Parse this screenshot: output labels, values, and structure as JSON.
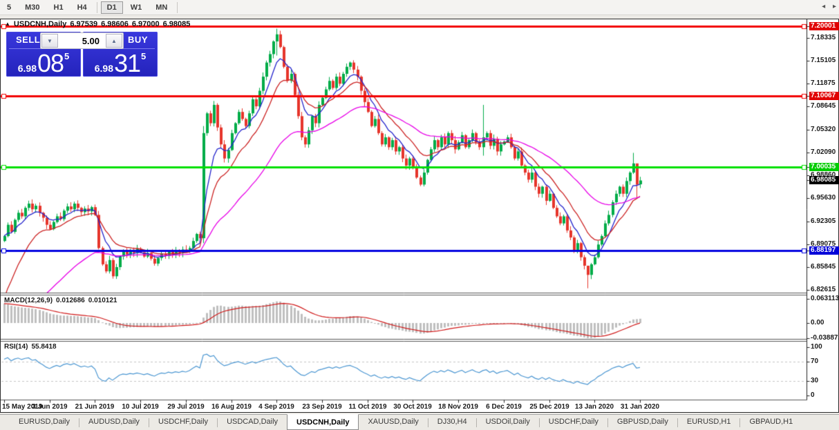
{
  "toolbar": {
    "items": [
      "5",
      "M30",
      "H1",
      "H4",
      "D1",
      "W1",
      "MN"
    ],
    "active": "D1"
  },
  "chart": {
    "title": {
      "expand_icon": "▲",
      "symbol": "USDCNH,Daily",
      "open": "6.97539",
      "high": "6.98606",
      "low": "6.97000",
      "close": "6.98085"
    },
    "trade_panel": {
      "sell_label": "SELL",
      "buy_label": "BUY",
      "volume": "5.00",
      "down_arrow": "▼",
      "up_arrow": "▲",
      "sell_price_prefix": "6.98",
      "sell_price_big": "08",
      "sell_price_sup": "5",
      "buy_price_prefix": "6.98",
      "buy_price_big": "31",
      "buy_price_sup": "5"
    }
  },
  "chart_data": {
    "type": "candlestick",
    "symbol": "USDCNH",
    "timeframe": "Daily",
    "x_labels": [
      "15 May 2019",
      "3 Jun 2019",
      "21 Jun 2019",
      "10 Jul 2019",
      "29 Jul 2019",
      "16 Aug 2019",
      "4 Sep 2019",
      "23 Sep 2019",
      "11 Oct 2019",
      "30 Oct 2019",
      "18 Nov 2019",
      "6 Dec 2019",
      "25 Dec 2019",
      "13 Jan 2020",
      "31 Jan 2020"
    ],
    "y_ticks_main": [
      7.18335,
      7.15105,
      7.11875,
      7.08645,
      7.0532,
      7.0209,
      6.9886,
      6.9563,
      6.92305,
      6.89075,
      6.85845,
      6.82615
    ],
    "hlines": [
      {
        "price": 7.20001,
        "color": "#F20000",
        "label_bg": "#E00000"
      },
      {
        "price": 7.10067,
        "color": "#F20000",
        "label_bg": "#E00000"
      },
      {
        "price": 7.00035,
        "color": "#00E000",
        "label_bg": "#00CC00"
      },
      {
        "price": 6.88197,
        "color": "#0202E0",
        "label_bg": "#0000D8"
      }
    ],
    "current_price": {
      "value": 6.98085,
      "label_bg": "#000000"
    },
    "candle_up_color": "#00AC48",
    "candle_down_color": "#E6352B",
    "closes": [
      6.902,
      6.918,
      6.908,
      6.925,
      6.935,
      6.93,
      6.942,
      6.948,
      6.94,
      6.945,
      6.935,
      6.928,
      6.918,
      6.912,
      6.922,
      6.93,
      6.926,
      6.938,
      6.944,
      6.94,
      6.948,
      6.942,
      6.936,
      6.941,
      6.937,
      6.943,
      6.932,
      6.885,
      6.862,
      6.852,
      6.868,
      6.845,
      6.858,
      6.873,
      6.88,
      6.876,
      6.882,
      6.878,
      6.884,
      6.879,
      6.873,
      6.878,
      6.87,
      6.863,
      6.871,
      6.877,
      6.874,
      6.88,
      6.876,
      6.881,
      6.878,
      6.883,
      6.88,
      6.885,
      6.895,
      6.905,
      6.899,
      7.048,
      7.076,
      7.062,
      7.088,
      7.056,
      7.032,
      7.012,
      7.024,
      7.048,
      7.062,
      7.078,
      7.068,
      7.058,
      7.076,
      7.096,
      7.086,
      7.108,
      7.128,
      7.148,
      7.16,
      7.178,
      7.188,
      7.17,
      7.142,
      7.122,
      7.132,
      7.102,
      7.072,
      7.042,
      7.032,
      7.052,
      7.072,
      7.062,
      7.088,
      7.098,
      7.11,
      7.122,
      7.112,
      7.128,
      7.118,
      7.132,
      7.142,
      7.148,
      7.138,
      7.128,
      7.108,
      7.092,
      7.078,
      7.058,
      7.068,
      7.048,
      7.032,
      7.042,
      7.028,
      7.038,
      7.022,
      7.028,
      7.012,
      7.002,
      7.012,
      6.998,
      6.985,
      6.975,
      6.992,
      7.01,
      7.025,
      7.038,
      7.028,
      7.042,
      7.032,
      7.048,
      7.038,
      7.025,
      7.035,
      7.045,
      7.028,
      7.038,
      7.048,
      7.035,
      7.028,
      7.042,
      7.048,
      7.03,
      7.04,
      7.022,
      7.032,
      7.036,
      7.042,
      7.028,
      7.012,
      7.022,
      7.002,
      6.992,
      6.982,
      6.992,
      6.972,
      6.962,
      6.972,
      6.952,
      6.962,
      6.942,
      6.93,
      6.92,
      6.93,
      6.91,
      6.9,
      6.882,
      6.892,
      6.872,
      6.86,
      6.847,
      6.862,
      6.872,
      6.89,
      6.902,
      6.92,
      6.932,
      6.95,
      6.962,
      6.972,
      6.962,
      6.98,
      6.992,
      7.005,
      6.975,
      6.98085
    ],
    "open_overrides": {
      "0": 6.895,
      "182": 6.97539
    },
    "wick_overrides": {
      "57": [
        7.058,
        6.892
      ],
      "78": [
        7.196,
        7.158
      ],
      "137": [
        7.088,
        7.016
      ],
      "167": [
        6.853,
        6.828
      ],
      "180": [
        7.02,
        6.99
      ],
      "181": [
        6.996,
        6.955
      ],
      "182": [
        6.98606,
        6.97
      ]
    },
    "last_candle_ohlc": [
      6.97539,
      6.98606,
      6.97,
      6.98085
    ],
    "moving_averages": [
      {
        "name": "fast",
        "period": 7,
        "color": "#2222CC"
      },
      {
        "name": "medium",
        "period": 14,
        "color": "#CC2222"
      },
      {
        "name": "slow",
        "period": 40,
        "color": "#E800E8"
      }
    ],
    "macd": {
      "label": "MACD(12,26,9)",
      "value_main": "0.012686",
      "value_signal": "0.010121",
      "ticks": [
        {
          "v": 0.063113,
          "text": "0.063113"
        },
        {
          "v": 0,
          "text": "0.00"
        },
        {
          "v": -0.038872,
          "text": "-0.038872"
        }
      ],
      "bar_color": "#BFBFBF",
      "signal_color": "#D01818"
    },
    "rsi": {
      "label": "RSI(14)",
      "value": "55.8418",
      "ticks": [
        100,
        70,
        30,
        0
      ],
      "dashed_levels": [
        70,
        30
      ],
      "color": "#4A96D2"
    }
  },
  "tabs": {
    "items": [
      "EURUSD,Daily",
      "AUDUSD,Daily",
      "USDCHF,Daily",
      "USDCAD,Daily",
      "USDCNH,Daily",
      "XAUUSD,Daily",
      "DJ30,H4",
      "USDOil,Daily",
      "USDCHF,Daily",
      "GBPUSD,Daily",
      "EURUSD,H1",
      "GBPAUD,H1"
    ],
    "active_index": 4,
    "scroll_left": "◂",
    "scroll_right": "▸"
  }
}
